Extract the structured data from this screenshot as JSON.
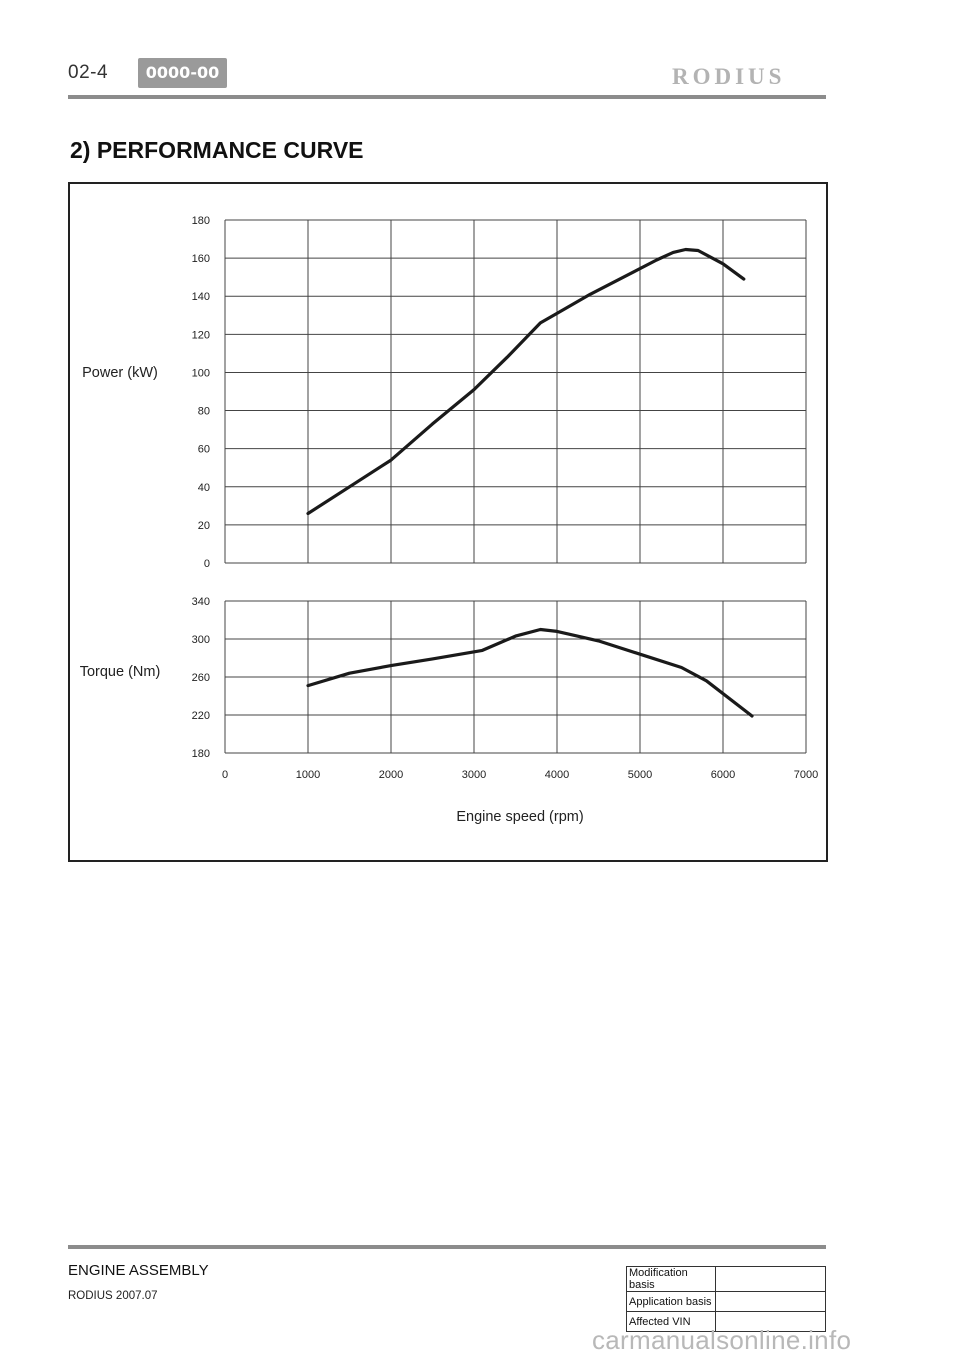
{
  "header": {
    "page_number": "02-4",
    "code": "0000-00",
    "brand": "RODIUS"
  },
  "section_title": "2) PERFORMANCE CURVE",
  "chart_data": [
    {
      "type": "line",
      "ylabel": "Power (kW)",
      "ylim": [
        0,
        180
      ],
      "yticks": [
        0,
        20,
        40,
        60,
        80,
        100,
        120,
        140,
        160,
        180
      ],
      "xlim": [
        0,
        7000
      ],
      "grid": true,
      "series": [
        {
          "x": [
            1000,
            1500,
            2000,
            2500,
            3000,
            3400,
            3800,
            4000,
            4400,
            4800,
            5200,
            5400,
            5550,
            5700,
            6000,
            6250
          ],
          "y": [
            26,
            40,
            54,
            73,
            91,
            108,
            126,
            131,
            141,
            150,
            159,
            163,
            164.5,
            164,
            157,
            149
          ]
        }
      ]
    },
    {
      "type": "line",
      "ylabel": "Torque (Nm)",
      "xlabel": "Engine speed (rpm)",
      "ylim": [
        180,
        340
      ],
      "yticks": [
        180,
        220,
        260,
        300,
        340
      ],
      "xlim": [
        0,
        7000
      ],
      "xticks": [
        0,
        1000,
        2000,
        3000,
        4000,
        5000,
        6000,
        7000
      ],
      "grid": true,
      "series": [
        {
          "x": [
            1000,
            1500,
            2000,
            2500,
            3100,
            3500,
            3800,
            4000,
            4500,
            5000,
            5500,
            5800,
            6350
          ],
          "y": [
            251,
            264,
            272,
            279,
            288,
            303,
            310,
            308,
            298,
            284,
            270,
            256,
            219
          ]
        }
      ]
    }
  ],
  "footer": {
    "section": "ENGINE ASSEMBLY",
    "model": "RODIUS 2007.07",
    "info_rows": [
      {
        "label": "Modification basis",
        "value": ""
      },
      {
        "label": "Application basis",
        "value": ""
      },
      {
        "label": "Affected VIN",
        "value": ""
      }
    ],
    "watermark": "carmanualsonline.info"
  }
}
